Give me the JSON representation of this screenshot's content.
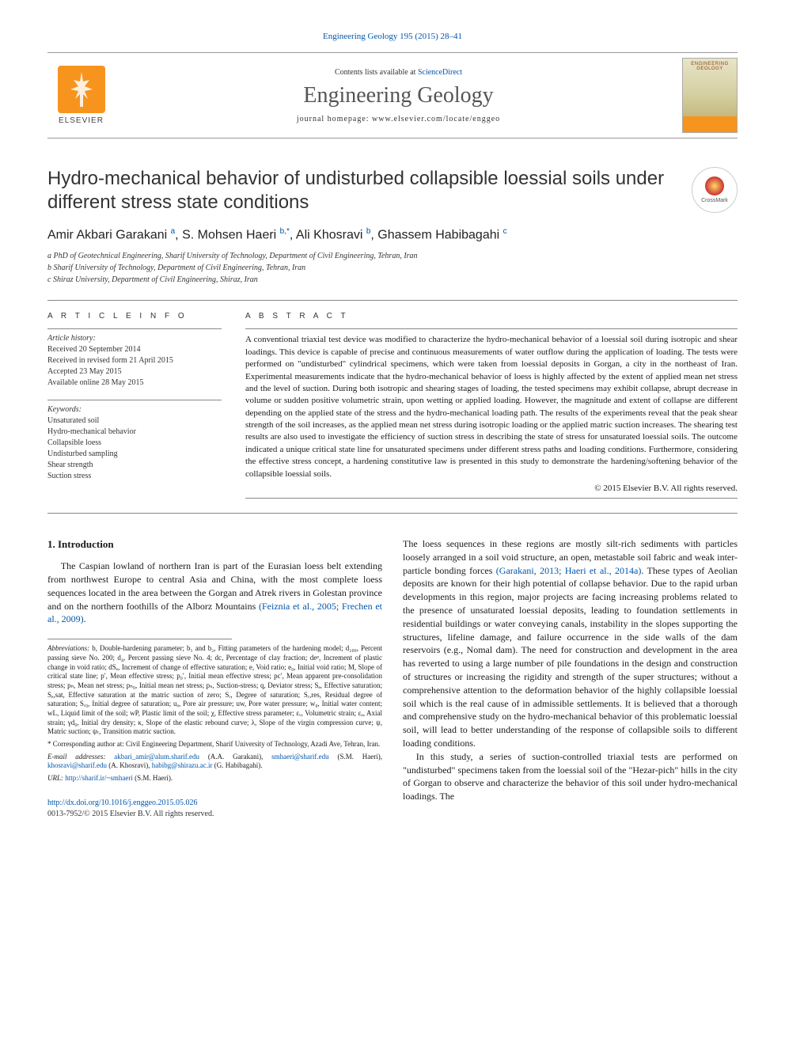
{
  "top_citation": "Engineering Geology 195 (2015) 28–41",
  "header": {
    "contents_prefix": "Contents lists available at ",
    "contents_link": "ScienceDirect",
    "journal_name": "Engineering Geology",
    "homepage_prefix": "journal homepage: ",
    "homepage_url": "www.elsevier.com/locate/enggeo",
    "publisher_label": "ELSEVIER",
    "cover_label": "ENGINEERING GEOLOGY"
  },
  "crossmark_label": "CrossMark",
  "title": "Hydro-mechanical behavior of undisturbed collapsible loessial soils under different stress state conditions",
  "authors_html": "Amir Akbari Garakani <sup>a</sup>, S. Mohsen Haeri <sup>b,*</sup>, Ali Khosravi <sup>b</sup>, Ghassem Habibagahi <sup>c</sup>",
  "affiliations": [
    "a  PhD of Geotechnical Engineering, Sharif University of Technology, Department of Civil Engineering, Tehran, Iran",
    "b  Sharif University of Technology, Department of Civil Engineering, Tehran, Iran",
    "c  Shiraz University, Department of Civil Engineering, Shiraz, Iran"
  ],
  "article_info_heading": "A R T I C L E   I N F O",
  "history_label": "Article history:",
  "history": [
    "Received 20 September 2014",
    "Received in revised form 21 April 2015",
    "Accepted 23 May 2015",
    "Available online 28 May 2015"
  ],
  "keywords_label": "Keywords:",
  "keywords": [
    "Unsaturated soil",
    "Hydro-mechanical behavior",
    "Collapsible loess",
    "Undisturbed sampling",
    "Shear strength",
    "Suction stress"
  ],
  "abstract_heading": "A B S T R A C T",
  "abstract": "A conventional triaxial test device was modified to characterize the hydro-mechanical behavior of a loessial soil during isotropic and shear loadings. This device is capable of precise and continuous measurements of water outflow during the application of loading. The tests were performed on \"undisturbed\" cylindrical specimens, which were taken from loessial deposits in Gorgan, a city in the northeast of Iran. Experimental measurements indicate that the hydro-mechanical behavior of loess is highly affected by the extent of applied mean net stress and the level of suction. During both isotropic and shearing stages of loading, the tested specimens may exhibit collapse, abrupt decrease in volume or sudden positive volumetric strain, upon wetting or applied loading. However, the magnitude and extent of collapse are different depending on the applied state of the stress and the hydro-mechanical loading path. The results of the experiments reveal that the peak shear strength of the soil increases, as the applied mean net stress during isotropic loading or the applied matric suction increases. The shearing test results are also used to investigate the efficiency of suction stress in describing the state of stress for unsaturated loessial soils. The outcome indicated a unique critical state line for unsaturated specimens under different stress paths and loading conditions. Furthermore, considering the effective stress concept, a hardening constitutive law is presented in this study to demonstrate the hardening/softening behavior of the collapsible loessial soils.",
  "copyright": "© 2015 Elsevier B.V. All rights reserved.",
  "intro_heading": "1. Introduction",
  "intro_p1_pre": "The Caspian lowland of northern Iran is part of the Eurasian loess belt extending from northwest Europe to central Asia and China, with the most complete loess sequences located in the area between the Gorgan and Atrek rivers in Golestan province and on the northern foothills of the Alborz Mountains ",
  "intro_p1_cite": "(Feiznia et al., 2005; Frechen et al., 2009)",
  "intro_p1_post": ".",
  "col2_p1_pre": "The loess sequences in these regions are mostly silt-rich sediments with particles loosely arranged in a soil void structure, an open, metastable soil fabric and weak inter-particle bonding forces ",
  "col2_p1_cite": "(Garakani, 2013; Haeri et al., 2014a)",
  "col2_p1_post": ". These types of Aeolian deposits are known for their high potential of collapse behavior. Due to the rapid urban developments in this region, major projects are facing increasing problems related to the presence of unsaturated loessial deposits, leading to foundation settlements in residential buildings or water conveying canals, instability in the slopes supporting the structures, lifeline damage, and failure occurrence in the side walls of the dam reservoirs (e.g., Nomal dam). The need for construction and development in the area has reverted to using a large number of pile foundations in the design and construction of structures or increasing the rigidity and strength of the super structures; without a comprehensive attention to the deformation behavior of the highly collapsible loessial soil which is the real cause of in admissible settlements. It is believed that a thorough and comprehensive study on the hydro-mechanical behavior of this problematic loessial soil, will lead to better understanding of the response of collapsible soils to different loading conditions.",
  "col2_p2": "In this study, a series of suction-controlled triaxial tests are performed on \"undisturbed\" specimens taken from the loessial soil of the \"Hezar-pich\" hills in the city of Gorgan to observe and characterize the behavior of this soil under hydro-mechanical loadings. The",
  "abbreviations_label": "Abbreviations:",
  "abbreviations": " b, Double-hardening parameter; b₁ and b₂, Fitting parameters of the hardening model; d₂₀₀, Percent passing sieve No. 200; d₄, Percent passing sieve No. 4; dc, Percentage of clay fraction; deᵖ, Increment of plastic change in void ratio; dSₑ, Increment of change of effective saturation; e, Void ratio; e₀, Initial void ratio; M, Slope of critical state line; p′, Mean effective stress; p₀′, Initial mean effective stress; pc′, Mean apparent pre-consolidation stress; pₙ, Mean net stress; pₙ₀, Initial mean net stress; pₛ, Suction-stress; q, Deviator stress; Sₑ, Effective saturation; Sₑ,sat, Effective saturation at the matric suction of zero; Sᵣ, Degree of saturation; Sᵣ,res, Residual degree of saturation; Sᵣ₀, Initial degree of saturation; uₐ, Pore air pressure; uw, Pore water pressure; w₀, Initial water content; wL, Liquid limit of the soil; wP, Plastic limit of the soil; χ, Effective stress parameter; εᵥ, Volumetric strain; εₐ, Axial strain; γd₀, Initial dry density; κ, Slope of the elastic rebound curve; λ, Slope of the virgin compression curve; ψ, Matric suction; ψₜ, Transition matric suction.",
  "corresponding_label": "* Corresponding author at:",
  "corresponding_text": " Civil Engineering Department, Sharif University of Technology, Azadi Ave, Tehran, Iran.",
  "emails_label": "E-mail addresses:",
  "emails": [
    {
      "addr": "akbari_amir@alum.sharif.edu",
      "who": " (A.A. Garakani), "
    },
    {
      "addr": "smhaeri@sharif.edu",
      "who": " (S.M. Haeri), "
    },
    {
      "addr": "khosravi@sharif.edu",
      "who": " (A. Khosravi), "
    },
    {
      "addr": "habibg@shirazu.ac.ir",
      "who": " (G. Habibagahi)."
    }
  ],
  "url_label": "URL:",
  "url_value": "http://sharif.ir/~smhaeri",
  "url_who": " (S.M. Haeri).",
  "doi_link": "http://dx.doi.org/10.1016/j.enggeo.2015.05.026",
  "issn_line": "0013-7952/© 2015 Elsevier B.V. All rights reserved.",
  "colors": {
    "link": "#0055aa",
    "elsevier_orange": "#f7941e",
    "rule": "#888888",
    "text": "#1a1a1a"
  }
}
